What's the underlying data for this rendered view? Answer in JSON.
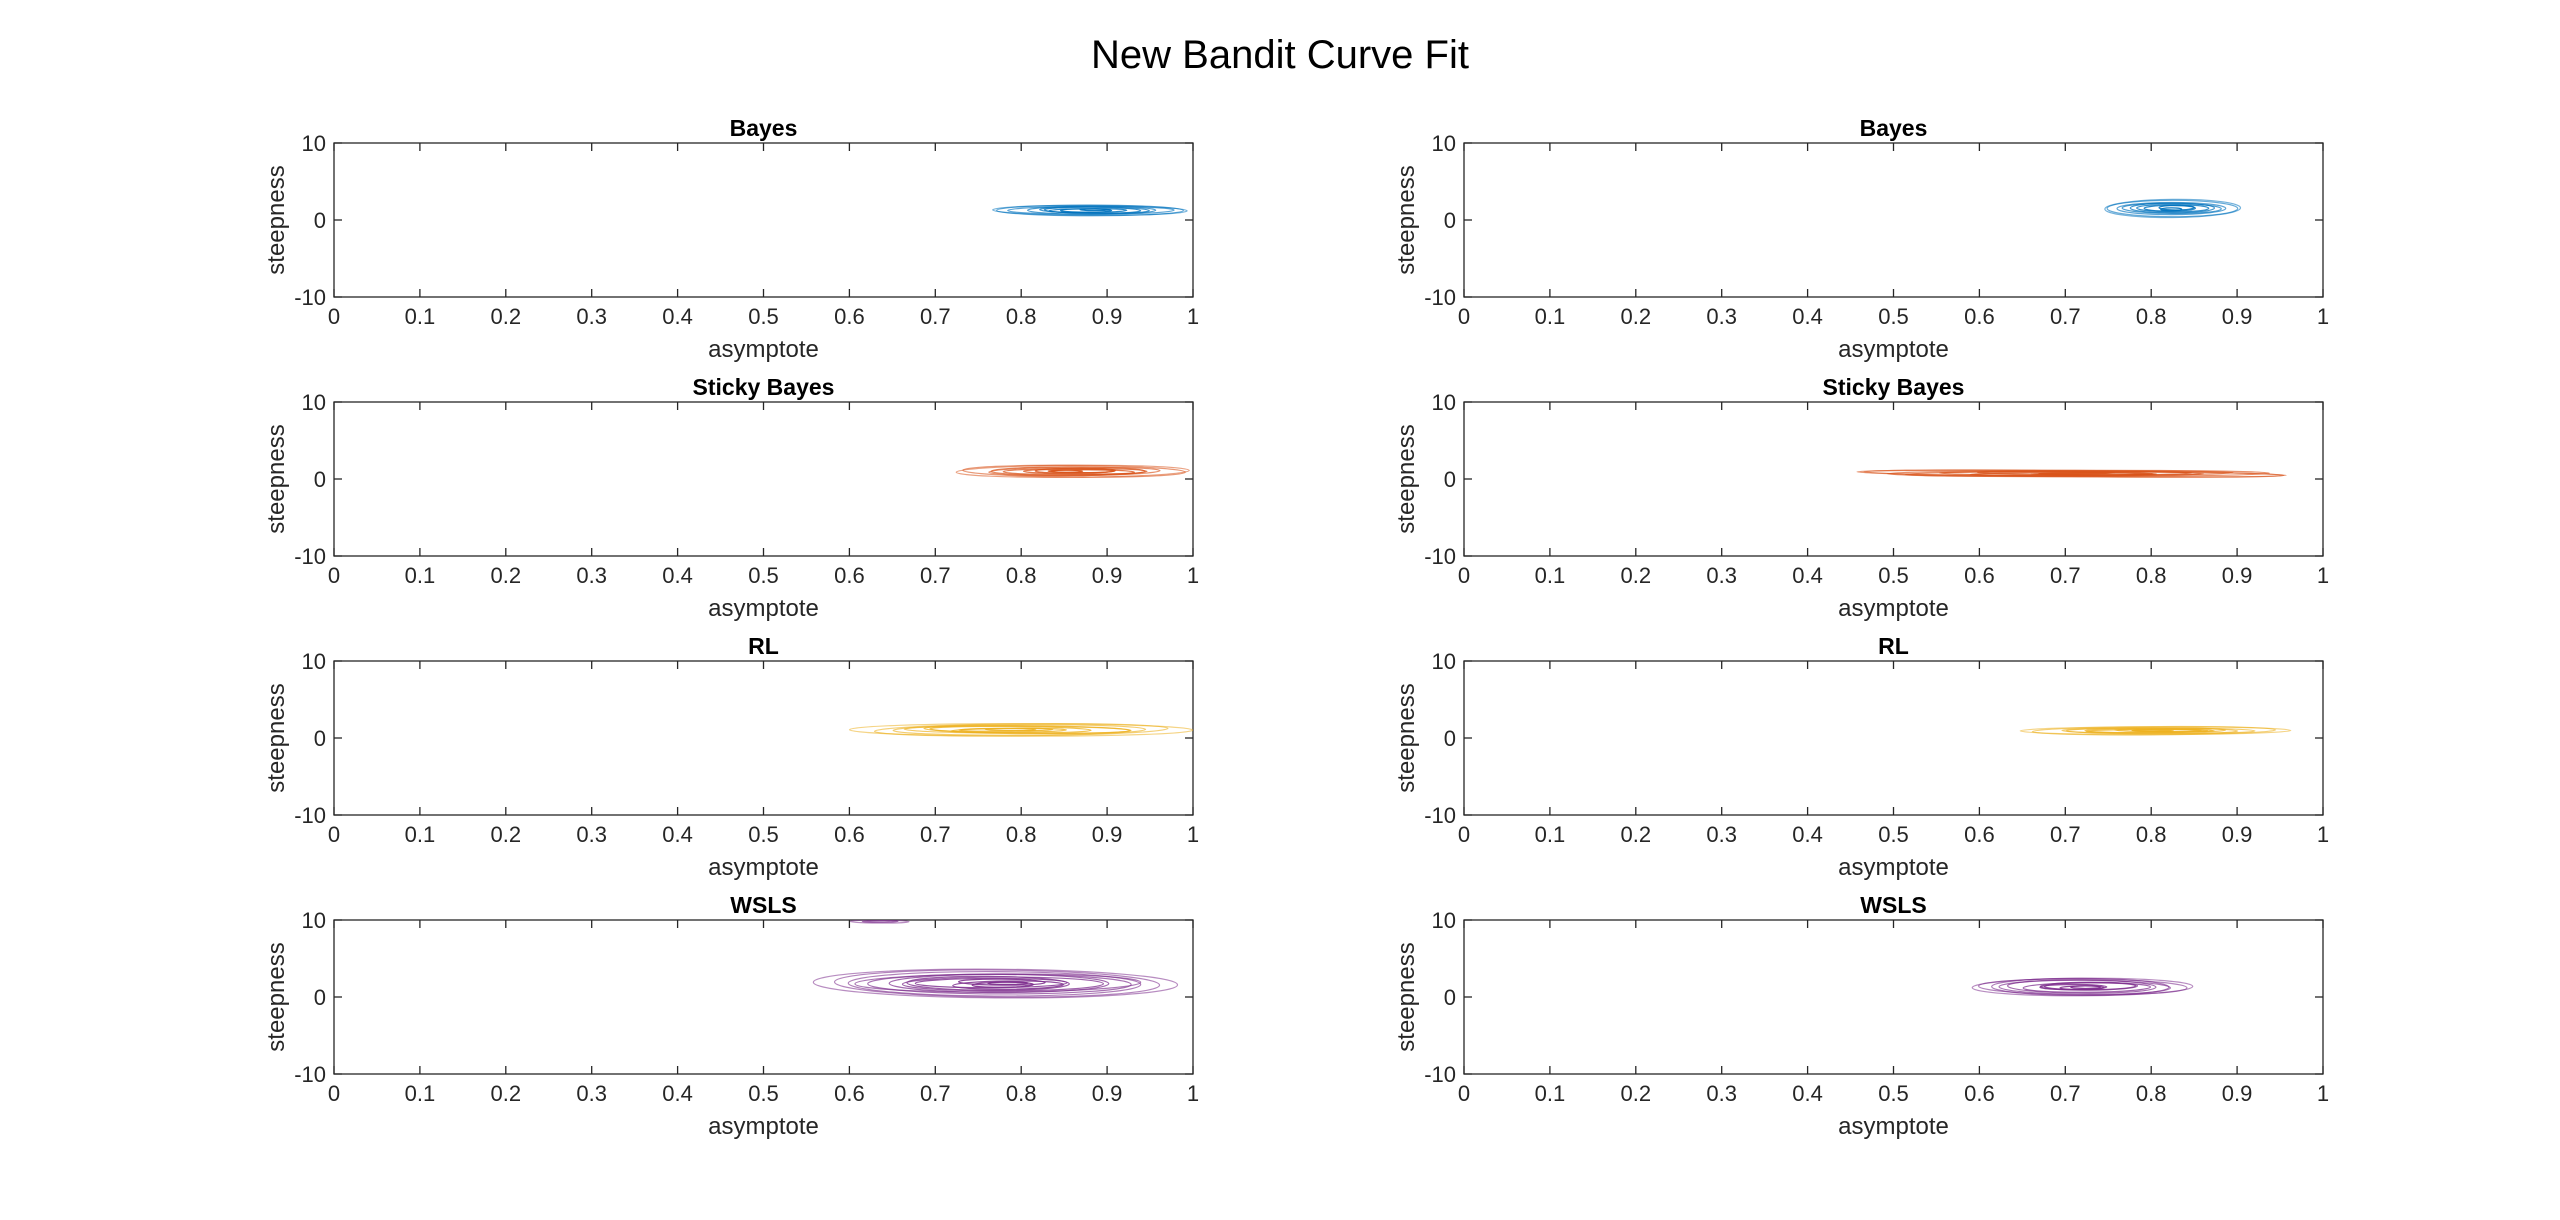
{
  "figure": {
    "title": "New Bandit Curve Fit"
  },
  "colors": {
    "Bayes": "#0072BD",
    "Sticky Bayes": "#D95319",
    "RL": "#EDB120",
    "WSLS": "#7E2F8E"
  },
  "chart_data": [
    {
      "type": "contour",
      "title": "Bayes",
      "color_key": "Bayes",
      "column": "left",
      "xlabel": "asymptote",
      "ylabel": "steepness",
      "xlim": [
        0,
        1
      ],
      "ylim": [
        -10,
        10
      ],
      "xticks": [
        "0",
        "0.1",
        "0.2",
        "0.3",
        "0.4",
        "0.5",
        "0.6",
        "0.7",
        "0.8",
        "0.9",
        "1"
      ],
      "yticks": [
        "-10",
        "0",
        "10"
      ],
      "blobs": [
        {
          "x": [
            0.76,
            1.0
          ],
          "y": [
            0.5,
            2.0
          ],
          "levels": 9
        }
      ]
    },
    {
      "type": "contour",
      "title": "Bayes",
      "color_key": "Bayes",
      "column": "right",
      "xlabel": "asymptote",
      "ylabel": "steepness",
      "xlim": [
        0,
        1
      ],
      "ylim": [
        -10,
        10
      ],
      "xticks": [
        "0",
        "0.1",
        "0.2",
        "0.3",
        "0.4",
        "0.5",
        "0.6",
        "0.7",
        "0.8",
        "0.9",
        "1"
      ],
      "yticks": [
        "-10",
        "0",
        "10"
      ],
      "blobs": [
        {
          "x": [
            0.74,
            0.91
          ],
          "y": [
            0.4,
            2.6
          ],
          "levels": 9
        }
      ]
    },
    {
      "type": "contour",
      "title": "Sticky Bayes",
      "color_key": "Sticky Bayes",
      "column": "left",
      "xlabel": "asymptote",
      "ylabel": "steepness",
      "xlim": [
        0,
        1
      ],
      "ylim": [
        -10,
        10
      ],
      "xticks": [
        "0",
        "0.1",
        "0.2",
        "0.3",
        "0.4",
        "0.5",
        "0.6",
        "0.7",
        "0.8",
        "0.9",
        "1"
      ],
      "yticks": [
        "-10",
        "0",
        "10"
      ],
      "blobs": [
        {
          "x": [
            0.72,
            1.0
          ],
          "y": [
            0.2,
            1.8
          ],
          "levels": 9
        }
      ]
    },
    {
      "type": "contour",
      "title": "Sticky Bayes",
      "color_key": "Sticky Bayes",
      "column": "right",
      "xlabel": "asymptote",
      "ylabel": "steepness",
      "xlim": [
        0,
        1
      ],
      "ylim": [
        -10,
        10
      ],
      "xticks": [
        "0",
        "0.1",
        "0.2",
        "0.3",
        "0.4",
        "0.5",
        "0.6",
        "0.7",
        "0.8",
        "0.9",
        "1"
      ],
      "yticks": [
        "-10",
        "0",
        "10"
      ],
      "blobs": [
        {
          "x": [
            0.44,
            0.98
          ],
          "y": [
            0.2,
            1.2
          ],
          "levels": 9
        }
      ]
    },
    {
      "type": "contour",
      "title": "RL",
      "color_key": "RL",
      "column": "left",
      "xlabel": "asymptote",
      "ylabel": "steepness",
      "xlim": [
        0,
        1
      ],
      "ylim": [
        -10,
        10
      ],
      "xticks": [
        "0",
        "0.1",
        "0.2",
        "0.3",
        "0.4",
        "0.5",
        "0.6",
        "0.7",
        "0.8",
        "0.9",
        "1"
      ],
      "yticks": [
        "-10",
        "0",
        "10"
      ],
      "blobs": [
        {
          "x": [
            0.6,
            1.0
          ],
          "y": [
            0.2,
            1.9
          ],
          "levels": 9
        }
      ]
    },
    {
      "type": "contour",
      "title": "RL",
      "color_key": "RL",
      "column": "right",
      "xlabel": "asymptote",
      "ylabel": "steepness",
      "xlim": [
        0,
        1
      ],
      "ylim": [
        -10,
        10
      ],
      "xticks": [
        "0",
        "0.1",
        "0.2",
        "0.3",
        "0.4",
        "0.5",
        "0.6",
        "0.7",
        "0.8",
        "0.9",
        "1"
      ],
      "yticks": [
        "-10",
        "0",
        "10"
      ],
      "blobs": [
        {
          "x": [
            0.65,
            0.96
          ],
          "y": [
            0.4,
            1.5
          ],
          "levels": 9
        }
      ]
    },
    {
      "type": "contour",
      "title": "WSLS",
      "color_key": "WSLS",
      "column": "left",
      "xlabel": "asymptote",
      "ylabel": "steepness",
      "xlim": [
        0,
        1
      ],
      "ylim": [
        -10,
        10
      ],
      "xticks": [
        "0",
        "0.1",
        "0.2",
        "0.3",
        "0.4",
        "0.5",
        "0.6",
        "0.7",
        "0.8",
        "0.9",
        "1"
      ],
      "yticks": [
        "-10",
        "0",
        "10"
      ],
      "blobs": [
        {
          "x": [
            0.56,
            0.98
          ],
          "y": [
            0.0,
            3.5
          ],
          "levels": 13
        },
        {
          "x": [
            0.6,
            0.67
          ],
          "y": [
            9.6,
            10.0
          ],
          "levels": 2
        }
      ]
    },
    {
      "type": "contour",
      "title": "WSLS",
      "color_key": "WSLS",
      "column": "right",
      "xlabel": "asymptote",
      "ylabel": "steepness",
      "xlim": [
        0,
        1
      ],
      "ylim": [
        -10,
        10
      ],
      "xticks": [
        "0",
        "0.1",
        "0.2",
        "0.3",
        "0.4",
        "0.5",
        "0.6",
        "0.7",
        "0.8",
        "0.9",
        "1"
      ],
      "yticks": [
        "-10",
        "0",
        "10"
      ],
      "blobs": [
        {
          "x": [
            0.59,
            0.85
          ],
          "y": [
            0.0,
            2.6
          ],
          "levels": 11
        }
      ]
    }
  ]
}
